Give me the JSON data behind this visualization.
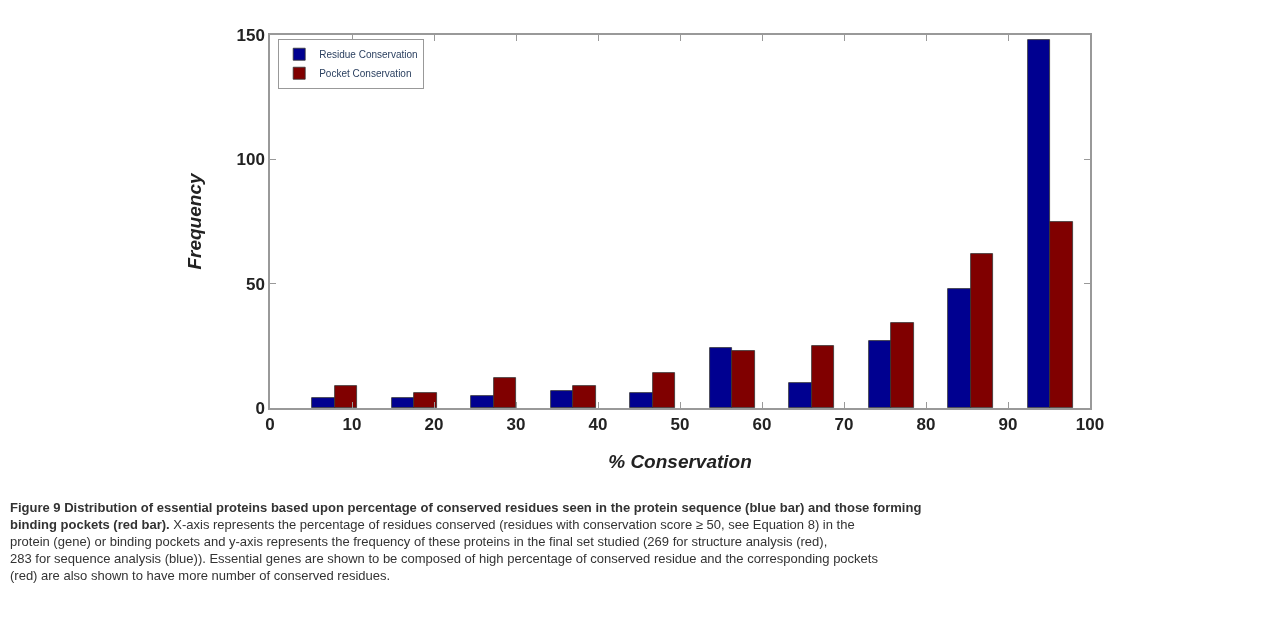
{
  "chart_data": {
    "type": "bar",
    "xlabel": "% Conservation",
    "ylabel": "Frequency",
    "series": [
      {
        "name": "Residue Conservation",
        "color": "#000090",
        "x": [
          6.5,
          16.2,
          25.9,
          35.6,
          45.3,
          55.0,
          64.7,
          74.4,
          84.1,
          93.8
        ],
        "values": [
          4,
          4,
          5,
          7,
          6,
          24,
          10,
          27,
          48,
          148
        ]
      },
      {
        "name": "Pocket Conservation",
        "color": "#800000",
        "x": [
          9.25,
          18.95,
          28.65,
          38.35,
          48.05,
          57.75,
          67.45,
          77.15,
          86.85,
          96.55
        ],
        "values": [
          9,
          6,
          12,
          9,
          14,
          23,
          25,
          34,
          62,
          75
        ]
      }
    ],
    "xlim": [
      0,
      100
    ],
    "xticks": [
      0,
      10,
      20,
      30,
      40,
      50,
      60,
      70,
      80,
      90,
      100
    ],
    "ylim": [
      0,
      150
    ],
    "yticks": [
      0,
      50,
      100,
      150
    ],
    "legend": "top left",
    "annotations": [
      "Figure 9 Distribution of essential proteins based upon percentage of conserved residues seen in the protein sequence (blue bar) and those forming binding pockets (red bar).",
      "X-axis represents the percentage of residues conserved (residues with conservation score ≥ 50, see Equation 8) in the protein (gene) or binding pockets and y-axis represents the frequency of these proteins in the final set studied (269 for structure analysis (red), 283 for sequence analysis (blue)). Essential genes are shown to be composed of high percentage of conserved residue and the corresponding pockets (red) are also shown to have more number of conserved residues."
    ]
  }
}
